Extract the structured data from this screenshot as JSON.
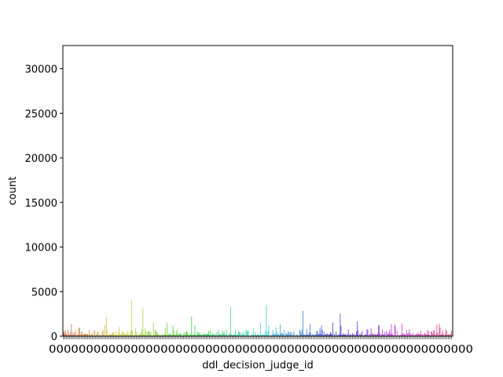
{
  "chart_data": {
    "type": "bar",
    "xlabel": "ddl_decision_judge_id",
    "ylabel": "count",
    "ylim": [
      0,
      32600
    ],
    "yticks": [
      0,
      5000,
      10000,
      15000,
      20000,
      25000,
      30000
    ],
    "ytick_labels": [
      "0",
      "5000",
      "10000",
      "15000",
      "20000",
      "25000",
      "30000"
    ],
    "x_tick_labels_overlapping": "000000000000000000000000000000000000000000000000000000000",
    "num_categories": 480,
    "grid": false,
    "legend": "none",
    "palette": "husl",
    "notable_values": [
      {
        "approx_x_fraction": 0.02,
        "value": 1350
      },
      {
        "approx_x_fraction": 0.11,
        "value": 2150
      },
      {
        "approx_x_fraction": 0.175,
        "value": 4000
      },
      {
        "approx_x_fraction": 0.205,
        "value": 3100
      },
      {
        "approx_x_fraction": 0.33,
        "value": 2200
      },
      {
        "approx_x_fraction": 0.43,
        "value": 3300
      },
      {
        "approx_x_fraction": 0.52,
        "value": 3500
      },
      {
        "approx_x_fraction": 0.615,
        "value": 2850
      },
      {
        "approx_x_fraction": 0.71,
        "value": 2500
      },
      {
        "approx_x_fraction": 0.755,
        "value": 1650
      },
      {
        "approx_x_fraction": 0.85,
        "value": 1350
      },
      {
        "approx_x_fraction": 0.965,
        "value": 1400
      }
    ]
  }
}
